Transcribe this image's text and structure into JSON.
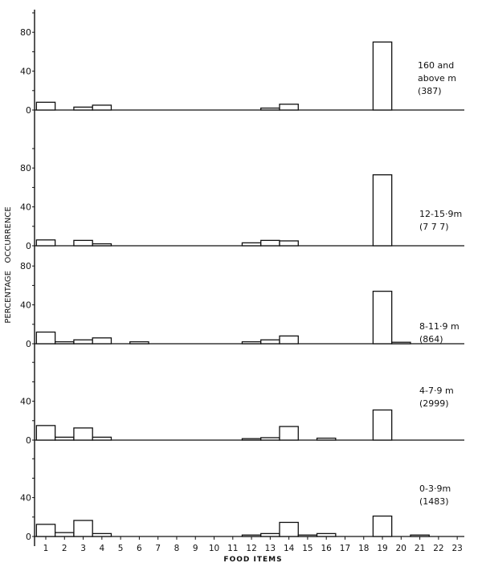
{
  "chart_data": {
    "type": "bar",
    "xlabel": "FOOD ITEMS",
    "ylabel": "PERCENTAGE   OCCURRENCE",
    "categories": [
      "1",
      "2",
      "3",
      "4",
      "5",
      "6",
      "7",
      "8",
      "9",
      "10",
      "11",
      "12",
      "13",
      "14",
      "15",
      "16",
      "17",
      "18",
      "19",
      "20",
      "21",
      "22",
      "23"
    ],
    "bar_fill": "#ffffff",
    "bar_stroke": "#111111",
    "grid": false,
    "panels": [
      {
        "label_lines": [
          "160 and",
          "above m",
          "(387)"
        ],
        "yticks": [
          0,
          40,
          80
        ],
        "ylim": [
          0,
          100
        ],
        "values": [
          8,
          0,
          3,
          5,
          0,
          0,
          0,
          0,
          0,
          0,
          0,
          0,
          2,
          6,
          0,
          0,
          0,
          0,
          70,
          0,
          0,
          0,
          0
        ]
      },
      {
        "label_lines": [
          "12-15·9m",
          "(7 7 7)"
        ],
        "yticks": [
          0,
          40,
          80
        ],
        "ylim": [
          0,
          100
        ],
        "values": [
          6,
          0,
          5.5,
          2,
          0,
          0,
          0,
          0,
          0,
          0,
          0,
          3,
          5.5,
          5,
          0,
          0,
          0,
          0,
          73,
          0,
          0,
          0,
          0
        ]
      },
      {
        "label_lines": [
          "8-11·9 m",
          "(864)"
        ],
        "yticks": [
          0,
          40,
          80
        ],
        "ylim": [
          0,
          85
        ],
        "values": [
          12,
          2,
          4,
          6,
          0,
          2,
          0,
          0,
          0,
          0,
          0,
          2,
          4,
          8,
          0,
          0,
          0,
          0,
          54,
          1.5,
          0,
          0,
          0
        ]
      },
      {
        "label_lines": [
          "4-7·9 m",
          "(2999)"
        ],
        "yticks": [
          0,
          40
        ],
        "ylim": [
          0,
          85
        ],
        "values": [
          15,
          3,
          12.5,
          3,
          0,
          0,
          0,
          0,
          0,
          0,
          0,
          1.5,
          2.5,
          14,
          0,
          2,
          0,
          0,
          31,
          0,
          0,
          0,
          0
        ]
      },
      {
        "label_lines": [
          "0-3·9m",
          "(1483)"
        ],
        "yticks": [
          0,
          40
        ],
        "ylim": [
          0,
          80
        ],
        "values": [
          12.5,
          4,
          16.5,
          3,
          0,
          0,
          0,
          0,
          0,
          0,
          0,
          1.5,
          3,
          14.5,
          1.5,
          3,
          0,
          0,
          21,
          0,
          1.5,
          0,
          0
        ]
      }
    ]
  }
}
